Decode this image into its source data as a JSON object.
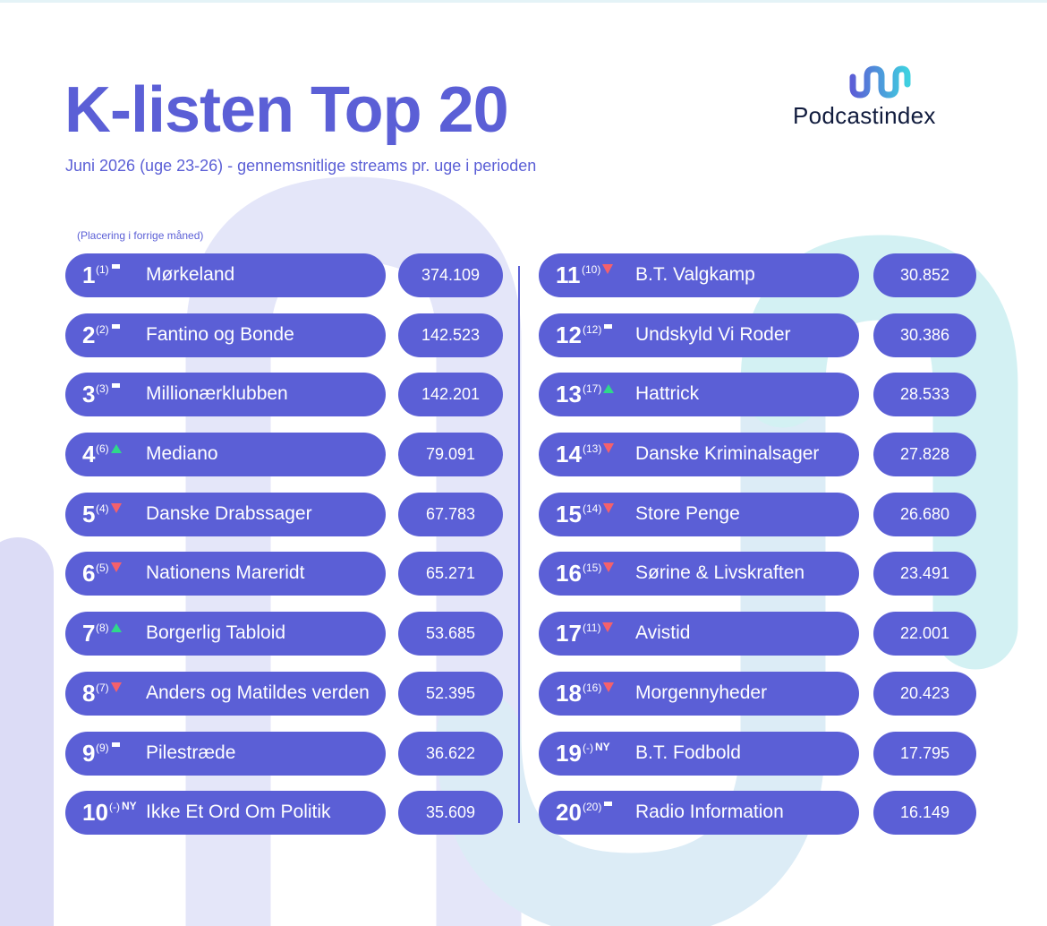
{
  "title": "K-listen Top 20",
  "subtitle": "Juni 2026 (uge 23-26) - gennemsnitlige streams pr. uge i perioden",
  "logo": {
    "name": "Podcastindex"
  },
  "note": "(Placering i forrige måned)",
  "colors": {
    "accent": "#5b5fd6",
    "up": "#2fd88a",
    "down": "#f5606b",
    "text_on_pill": "#ffffff"
  },
  "trend_legend": {
    "same": "bar-icon",
    "up": "triangle-up-icon",
    "down": "triangle-down-icon",
    "new": "NY"
  },
  "left_column": [
    {
      "rank": "1",
      "prev": "(1)",
      "trend": "same",
      "name": "Mørkeland",
      "streams": "374.109"
    },
    {
      "rank": "2",
      "prev": "(2)",
      "trend": "same",
      "name": "Fantino og Bonde",
      "streams": "142.523"
    },
    {
      "rank": "3",
      "prev": "(3)",
      "trend": "same",
      "name": "Millionærklubben",
      "streams": "142.201"
    },
    {
      "rank": "4",
      "prev": "(6)",
      "trend": "up",
      "name": "Mediano",
      "streams": "79.091"
    },
    {
      "rank": "5",
      "prev": "(4)",
      "trend": "down",
      "name": "Danske Drabssager",
      "streams": "67.783"
    },
    {
      "rank": "6",
      "prev": "(5)",
      "trend": "down",
      "name": "Nationens Mareridt",
      "streams": "65.271"
    },
    {
      "rank": "7",
      "prev": "(8)",
      "trend": "up",
      "name": "Borgerlig Tabloid",
      "streams": "53.685"
    },
    {
      "rank": "8",
      "prev": "(7)",
      "trend": "down",
      "name": "Anders og Matildes verden",
      "streams": "52.395"
    },
    {
      "rank": "9",
      "prev": "(9)",
      "trend": "same",
      "name": "Pilestræde",
      "streams": "36.622"
    },
    {
      "rank": "10",
      "prev": "(-)",
      "trend": "new",
      "trend_label": "NY",
      "name": "Ikke Et Ord Om Politik",
      "streams": "35.609"
    }
  ],
  "right_column": [
    {
      "rank": "11",
      "prev": "(10)",
      "trend": "down",
      "name": "B.T. Valgkamp",
      "streams": "30.852"
    },
    {
      "rank": "12",
      "prev": "(12)",
      "trend": "same",
      "name": "Undskyld Vi Roder",
      "streams": "30.386"
    },
    {
      "rank": "13",
      "prev": "(17)",
      "trend": "up",
      "name": "Hattrick",
      "streams": "28.533"
    },
    {
      "rank": "14",
      "prev": "(13)",
      "trend": "down",
      "name": "Danske Kriminalsager",
      "streams": "27.828"
    },
    {
      "rank": "15",
      "prev": "(14)",
      "trend": "down",
      "name": "Store Penge",
      "streams": "26.680"
    },
    {
      "rank": "16",
      "prev": "(15)",
      "trend": "down",
      "name": "Sørine & Livskraften",
      "streams": "23.491"
    },
    {
      "rank": "17",
      "prev": "(11)",
      "trend": "down",
      "name": "Avistid",
      "streams": "22.001"
    },
    {
      "rank": "18",
      "prev": "(16)",
      "trend": "down",
      "name": "Morgennyheder",
      "streams": "20.423"
    },
    {
      "rank": "19",
      "prev": "(-)",
      "trend": "new",
      "trend_label": "NY",
      "name": "B.T. Fodbold",
      "streams": "17.795"
    },
    {
      "rank": "20",
      "prev": "(20)",
      "trend": "same",
      "name": "Radio Information",
      "streams": "16.149"
    }
  ]
}
